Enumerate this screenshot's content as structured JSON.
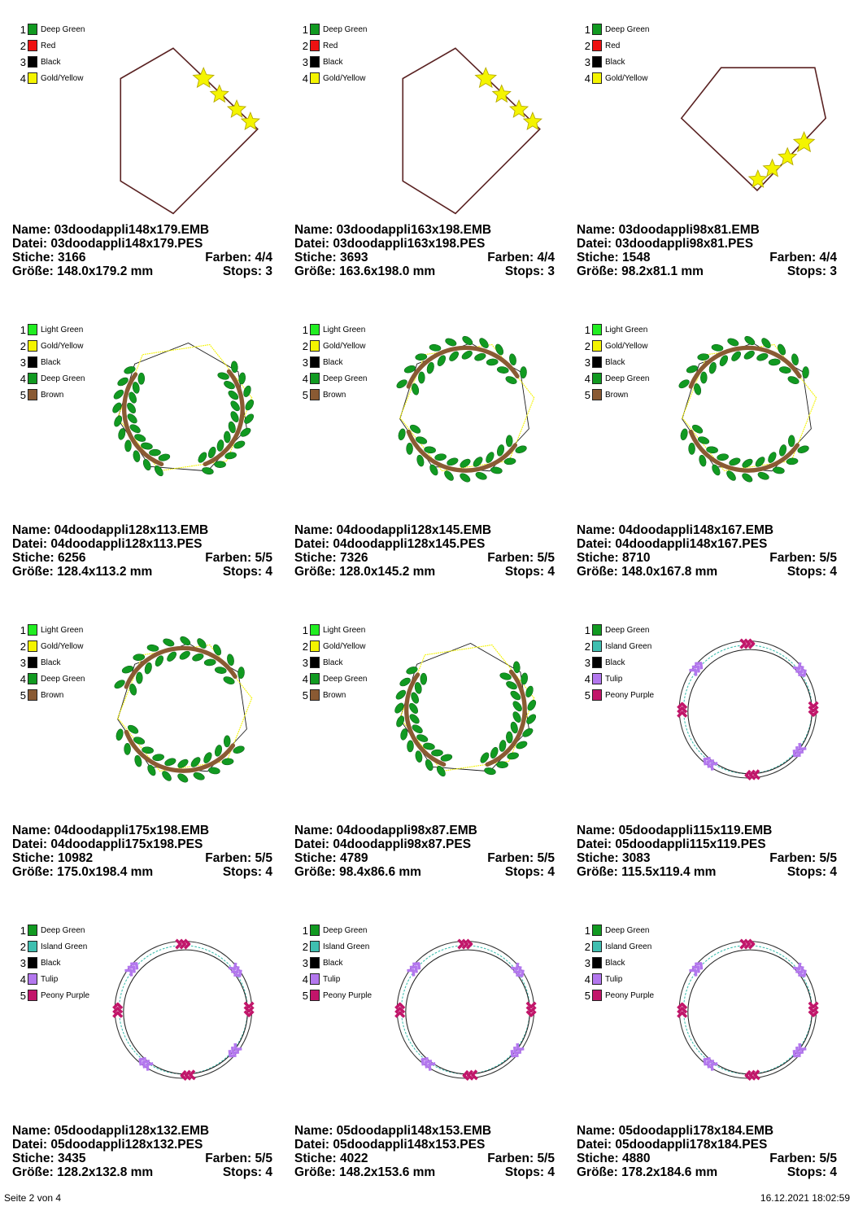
{
  "footer": {
    "page": "Seite 2 von 4",
    "date": "16.12.2021 18:02:59"
  },
  "colors": {
    "Deep Green": "#119a21",
    "Red": "#ee1111",
    "Black": "#000000",
    "Gold/Yellow": "#f4f400",
    "Light Green": "#22ee22",
    "Brown": "#8a5a33",
    "Island Green": "#3fbfb0",
    "Tulip": "#b377ee",
    "Peony Purple": "#c2156a"
  },
  "designs": [
    {
      "style": "hex-stars",
      "shape": "hex1",
      "legend": [
        "Deep Green",
        "Red",
        "Black",
        "Gold/Yellow"
      ],
      "name_label": "Name: 03doodappli148x179.EMB",
      "file_label": "Datei: 03doodappli148x179.PES",
      "stitches_label": "Stiche: 3166",
      "colors_label": "Farben: 4/4",
      "size_label": "Größe: 148.0x179.2 mm",
      "stops_label": "Stops: 3"
    },
    {
      "style": "hex-stars",
      "shape": "hex1",
      "legend": [
        "Deep Green",
        "Red",
        "Black",
        "Gold/Yellow"
      ],
      "name_label": "Name: 03doodappli163x198.EMB",
      "file_label": "Datei: 03doodappli163x198.PES",
      "stitches_label": "Stiche: 3693",
      "colors_label": "Farben: 4/4",
      "size_label": "Größe: 163.6x198.0 mm",
      "stops_label": "Stops: 3"
    },
    {
      "style": "hex-stars",
      "shape": "pent",
      "legend": [
        "Deep Green",
        "Red",
        "Black",
        "Gold/Yellow"
      ],
      "name_label": "Name: 03doodappli98x81.EMB",
      "file_label": "Datei: 03doodappli98x81.PES",
      "stitches_label": "Stiche: 1548",
      "colors_label": "Farben: 4/4",
      "size_label": "Größe: 98.2x81.1 mm",
      "stops_label": "Stops: 3"
    },
    {
      "style": "wreath",
      "shape": "sides",
      "legend": [
        "Light Green",
        "Gold/Yellow",
        "Black",
        "Deep Green",
        "Brown"
      ],
      "name_label": "Name: 04doodappli128x113.EMB",
      "file_label": "Datei: 04doodappli128x113.PES",
      "stitches_label": "Stiche: 6256",
      "colors_label": "Farben: 5/5",
      "size_label": "Größe: 128.4x113.2 mm",
      "stops_label": "Stops: 4"
    },
    {
      "style": "wreath",
      "shape": "topbottom",
      "legend": [
        "Light Green",
        "Gold/Yellow",
        "Black",
        "Deep Green",
        "Brown"
      ],
      "name_label": "Name: 04doodappli128x145.EMB",
      "file_label": "Datei: 04doodappli128x145.PES",
      "stitches_label": "Stiche: 7326",
      "colors_label": "Farben: 5/5",
      "size_label": "Größe: 128.0x145.2 mm",
      "stops_label": "Stops: 4"
    },
    {
      "style": "wreath",
      "shape": "topbottom",
      "legend": [
        "Light Green",
        "Gold/Yellow",
        "Black",
        "Deep Green",
        "Brown"
      ],
      "name_label": "Name: 04doodappli148x167.EMB",
      "file_label": "Datei: 04doodappli148x167.PES",
      "stitches_label": "Stiche: 8710",
      "colors_label": "Farben: 5/5",
      "size_label": "Größe: 148.0x167.8 mm",
      "stops_label": "Stops: 4"
    },
    {
      "style": "wreath",
      "shape": "topbottom",
      "legend": [
        "Light Green",
        "Gold/Yellow",
        "Black",
        "Deep Green",
        "Brown"
      ],
      "name_label": "Name: 04doodappli175x198.EMB",
      "file_label": "Datei: 04doodappli175x198.PES",
      "stitches_label": "Stiche: 10982",
      "colors_label": "Farben: 5/5",
      "size_label": "Größe: 175.0x198.4 mm",
      "stops_label": "Stops: 4"
    },
    {
      "style": "wreath",
      "shape": "sides",
      "legend": [
        "Light Green",
        "Gold/Yellow",
        "Black",
        "Deep Green",
        "Brown"
      ],
      "name_label": "Name: 04doodappli98x87.EMB",
      "file_label": "Datei: 04doodappli98x87.PES",
      "stitches_label": "Stiche: 4789",
      "colors_label": "Farben: 5/5",
      "size_label": "Größe: 98.4x86.6 mm",
      "stops_label": "Stops: 4"
    },
    {
      "style": "rings",
      "shape": "circle",
      "legend": [
        "Deep Green",
        "Island Green",
        "Black",
        "Tulip",
        "Peony Purple"
      ],
      "name_label": "Name: 05doodappli115x119.EMB",
      "file_label": "Datei: 05doodappli115x119.PES",
      "stitches_label": "Stiche: 3083",
      "colors_label": "Farben: 5/5",
      "size_label": "Größe: 115.5x119.4 mm",
      "stops_label": "Stops: 4"
    },
    {
      "style": "rings",
      "shape": "circle",
      "legend": [
        "Deep Green",
        "Island Green",
        "Black",
        "Tulip",
        "Peony Purple"
      ],
      "name_label": "Name: 05doodappli128x132.EMB",
      "file_label": "Datei: 05doodappli128x132.PES",
      "stitches_label": "Stiche: 3435",
      "colors_label": "Farben: 5/5",
      "size_label": "Größe: 128.2x132.8 mm",
      "stops_label": "Stops: 4"
    },
    {
      "style": "rings",
      "shape": "circle",
      "legend": [
        "Deep Green",
        "Island Green",
        "Black",
        "Tulip",
        "Peony Purple"
      ],
      "name_label": "Name: 05doodappli148x153.EMB",
      "file_label": "Datei: 05doodappli148x153.PES",
      "stitches_label": "Stiche: 4022",
      "colors_label": "Farben: 5/5",
      "size_label": "Größe: 148.2x153.6 mm",
      "stops_label": "Stops: 4"
    },
    {
      "style": "rings",
      "shape": "circle",
      "legend": [
        "Deep Green",
        "Island Green",
        "Black",
        "Tulip",
        "Peony Purple"
      ],
      "name_label": "Name: 05doodappli178x184.EMB",
      "file_label": "Datei: 05doodappli178x184.PES",
      "stitches_label": "Stiche: 4880",
      "colors_label": "Farben: 5/5",
      "size_label": "Größe: 178.2x184.6 mm",
      "stops_label": "Stops: 4"
    }
  ]
}
